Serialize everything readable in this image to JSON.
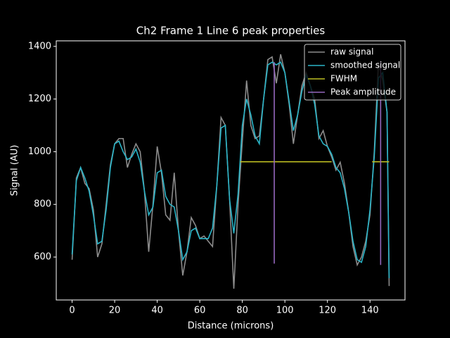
{
  "chart_data": {
    "type": "line",
    "title": "Ch2 Frame 1 Line 6 peak properties",
    "xlabel": "Distance (microns)",
    "ylabel": "Signal (AU)",
    "xlim": [
      -7.45,
      156.45
    ],
    "ylim": [
      437,
      1421
    ],
    "xticks": [
      0,
      20,
      40,
      60,
      80,
      100,
      120,
      140
    ],
    "yticks": [
      600,
      800,
      1000,
      1200,
      1400
    ],
    "grid": false,
    "legend": "upper right",
    "x": [
      0,
      2,
      4,
      6,
      8,
      10,
      12,
      14,
      16,
      18,
      20,
      22,
      24,
      26,
      28,
      30,
      32,
      34,
      36,
      38,
      40,
      42,
      44,
      46,
      48,
      50,
      52,
      54,
      56,
      58,
      60,
      62,
      64,
      66,
      68,
      70,
      72,
      74,
      76,
      78,
      80,
      82,
      84,
      86,
      88,
      90,
      92,
      94,
      96,
      98,
      100,
      102,
      104,
      106,
      108,
      110,
      112,
      114,
      116,
      118,
      120,
      122,
      124,
      126,
      128,
      130,
      132,
      134,
      136,
      138,
      140,
      142,
      144,
      146,
      148,
      149
    ],
    "series": [
      {
        "name": "raw signal",
        "color": "#8c8c8c",
        "values": [
          590,
          900,
          940,
          880,
          860,
          780,
          600,
          650,
          800,
          950,
          1030,
          1050,
          1050,
          940,
          990,
          1030,
          1000,
          850,
          620,
          800,
          1020,
          920,
          760,
          740,
          920,
          700,
          530,
          620,
          750,
          720,
          670,
          680,
          660,
          640,
          870,
          1130,
          1100,
          820,
          480,
          800,
          1040,
          1270,
          1100,
          1050,
          1060,
          1200,
          1350,
          1360,
          1260,
          1370,
          1300,
          1180,
          1030,
          1140,
          1250,
          1300,
          1250,
          1200,
          1050,
          1080,
          1020,
          980,
          930,
          960,
          880,
          770,
          640,
          570,
          600,
          660,
          760,
          1000,
          1340,
          1270,
          1150,
          490
        ]
      },
      {
        "name": "smoothed signal",
        "color": "#2ab5c8",
        "values": [
          610,
          890,
          940,
          900,
          850,
          760,
          650,
          660,
          780,
          940,
          1030,
          1040,
          1000,
          970,
          980,
          1010,
          960,
          850,
          760,
          790,
          920,
          930,
          830,
          800,
          790,
          700,
          590,
          620,
          700,
          710,
          670,
          670,
          670,
          710,
          870,
          1090,
          1100,
          820,
          690,
          840,
          1100,
          1200,
          1140,
          1060,
          1030,
          1200,
          1330,
          1340,
          1330,
          1340,
          1300,
          1190,
          1080,
          1140,
          1230,
          1290,
          1250,
          1180,
          1060,
          1030,
          1020,
          990,
          940,
          920,
          860,
          770,
          660,
          590,
          580,
          640,
          780,
          980,
          1280,
          1300,
          1150,
          520
        ]
      },
      {
        "name": "FWHM",
        "color": "#bcbd22",
        "x": [
          79,
          122,
          null,
          141,
          149
        ],
        "values": [
          962,
          962,
          null,
          962,
          962
        ]
      },
      {
        "name": "Peak amplitude",
        "color": "#9467bd",
        "x": [
          95,
          95,
          null,
          145,
          145
        ],
        "values": [
          575,
          1340,
          null,
          570,
          1345
        ]
      }
    ]
  }
}
